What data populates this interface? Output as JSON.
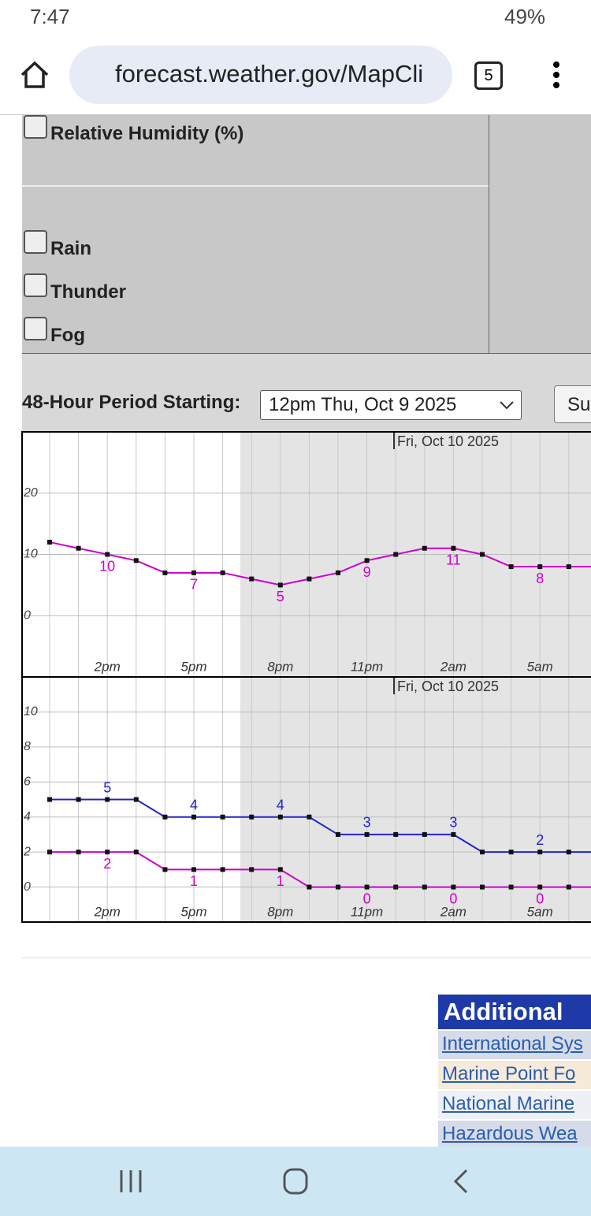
{
  "status_bar": {
    "time": "7:47",
    "battery": "49%"
  },
  "address_bar": {
    "url": "forecast.weather.gov/MapCli",
    "tab_count": "5"
  },
  "checkboxes": [
    "Relative Humidity (%)",
    "Rain",
    "Thunder",
    "Fog"
  ],
  "period": {
    "label": "48-Hour Period Starting:",
    "selected": "12pm Thu, Oct 9 2025",
    "button": "Su"
  },
  "chart_data": [
    {
      "type": "line",
      "date_label": "Fri, Oct 10 2025",
      "categories": [
        null,
        null,
        "2pm",
        null,
        null,
        "5pm",
        null,
        null,
        "8pm",
        null,
        null,
        "11pm",
        null,
        null,
        "2am",
        null,
        null,
        "5am",
        null,
        null
      ],
      "ylim": [
        -10,
        30
      ],
      "yticks": [
        0,
        10,
        20
      ],
      "grid": true,
      "series": [
        {
          "color": "#cc00cc",
          "values": [
            12,
            11,
            10,
            9,
            7,
            7,
            7,
            6,
            5,
            6,
            7,
            9,
            10,
            11,
            11,
            10,
            8,
            8,
            8,
            8
          ]
        }
      ]
    },
    {
      "type": "line",
      "date_label": "Fri, Oct 10 2025",
      "categories": [
        null,
        null,
        "2pm",
        null,
        null,
        "5pm",
        null,
        null,
        "8pm",
        null,
        null,
        "11pm",
        null,
        null,
        "2am",
        null,
        null,
        "5am",
        null,
        null
      ],
      "ylim": [
        -2,
        12
      ],
      "yticks": [
        0,
        2,
        4,
        6,
        8,
        10
      ],
      "grid": true,
      "series": [
        {
          "color": "#2222cc",
          "values": [
            5,
            5,
            5,
            5,
            4,
            4,
            4,
            4,
            4,
            4,
            3,
            3,
            3,
            3,
            3,
            2,
            2,
            2,
            2,
            2
          ]
        },
        {
          "color": "#cc00cc",
          "values": [
            2,
            2,
            2,
            2,
            1,
            1,
            1,
            1,
            1,
            0,
            0,
            0,
            0,
            0,
            0,
            0,
            0,
            0,
            0,
            0
          ]
        }
      ]
    }
  ],
  "additional": {
    "title": "Additional",
    "links": [
      "International Sys",
      "Marine Point Fo",
      "National Marine",
      "Hazardous Wea"
    ]
  }
}
